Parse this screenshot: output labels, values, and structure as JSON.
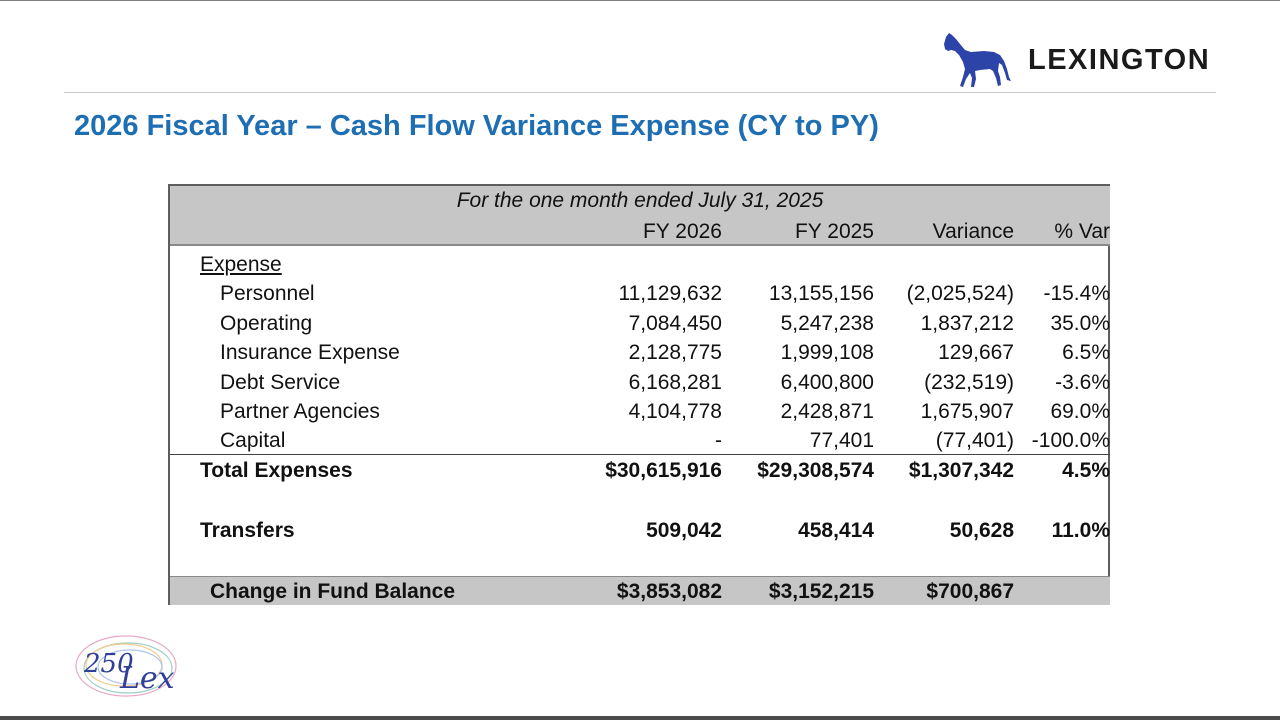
{
  "brand": {
    "name": "LEXINGTON",
    "logo_icon": "horse-icon",
    "color": "#2c44a8"
  },
  "title": "2026 Fiscal Year – Cash Flow Variance Expense (CY to PY)",
  "table": {
    "period": "For the one month ended July 31, 2025",
    "headers": [
      "FY 2026",
      "FY 2025",
      "Variance",
      "% Var"
    ],
    "section_label": "Expense",
    "rows": [
      {
        "label": "Personnel",
        "fy2026": "11,129,632",
        "fy2025": "13,155,156",
        "variance": "(2,025,524)",
        "pct": "-15.4%"
      },
      {
        "label": "Operating",
        "fy2026": "7,084,450",
        "fy2025": "5,247,238",
        "variance": "1,837,212",
        "pct": "35.0%"
      },
      {
        "label": "Insurance Expense",
        "fy2026": "2,128,775",
        "fy2025": "1,999,108",
        "variance": "129,667",
        "pct": "6.5%"
      },
      {
        "label": "Debt Service",
        "fy2026": "6,168,281",
        "fy2025": "6,400,800",
        "variance": "(232,519)",
        "pct": "-3.6%"
      },
      {
        "label": "Partner Agencies",
        "fy2026": "4,104,778",
        "fy2025": "2,428,871",
        "variance": "1,675,907",
        "pct": "69.0%"
      },
      {
        "label": "Capital",
        "fy2026": "-",
        "fy2025": "77,401",
        "variance": "(77,401)",
        "pct": "-100.0%"
      }
    ],
    "total": {
      "label": "Total Expenses",
      "fy2026": "$30,615,916",
      "fy2025": "$29,308,574",
      "variance": "$1,307,342",
      "pct": "4.5%"
    },
    "transfers": {
      "label": "Transfers",
      "fy2026": "509,042",
      "fy2025": "458,414",
      "variance": "50,628",
      "pct": "11.0%"
    },
    "change": {
      "label": "Change in Fund Balance",
      "fy2026": "$3,853,082",
      "fy2025": "$3,152,215",
      "variance": "$700,867"
    }
  },
  "badge": {
    "text": "250 Lex",
    "icon": "250-lex-logo"
  }
}
